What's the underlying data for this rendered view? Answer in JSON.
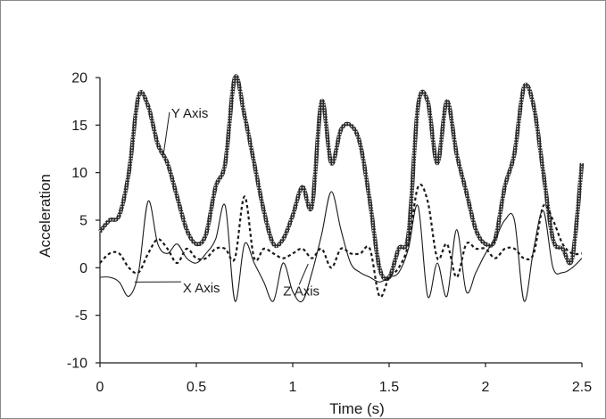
{
  "chart_data": {
    "type": "line",
    "xlabel": "Time (s)",
    "ylabel": "Acceleration",
    "xlim": [
      0,
      2.5
    ],
    "ylim": [
      -10,
      20
    ],
    "xticks": [
      0,
      0.5,
      1,
      1.5,
      2,
      2.5
    ],
    "xtick_labels": [
      "0",
      "0.5",
      "1",
      "1.5",
      "2",
      "2.5"
    ],
    "yticks": [
      -10,
      -5,
      0,
      5,
      10,
      15,
      20
    ],
    "ytick_labels": [
      "-10",
      "-5",
      "0",
      "5",
      "10",
      "15",
      "20"
    ],
    "grid": false,
    "legend": "none",
    "annotations": [
      {
        "text": "Y Axis",
        "series": "Y Axis",
        "x": 0.37,
        "y": 15.8,
        "arrow_to_x": 0.33,
        "arrow_to_y": 12.0
      },
      {
        "text": "X Axis",
        "series": "X Axis",
        "x": 0.43,
        "y": -2.6,
        "arrow_to_x": 0.18,
        "arrow_to_y": -1.5
      },
      {
        "text": "Z Axis",
        "series": "Z Axis",
        "x": 0.95,
        "y": -2.9,
        "arrow_to_x": 1.08,
        "arrow_to_y": 0.4
      }
    ],
    "series": [
      {
        "name": "Y Axis",
        "style": "thick-hatched",
        "x": [
          0,
          0.05,
          0.1,
          0.15,
          0.2,
          0.25,
          0.3,
          0.35,
          0.4,
          0.45,
          0.5,
          0.55,
          0.6,
          0.65,
          0.7,
          0.75,
          0.8,
          0.85,
          0.9,
          0.95,
          1.0,
          1.05,
          1.1,
          1.15,
          1.2,
          1.25,
          1.3,
          1.35,
          1.4,
          1.45,
          1.5,
          1.55,
          1.6,
          1.65,
          1.7,
          1.75,
          1.8,
          1.85,
          1.9,
          1.95,
          2.0,
          2.05,
          2.1,
          2.15,
          2.2,
          2.25,
          2.3,
          2.35,
          2.4,
          2.45,
          2.5
        ],
        "values": [
          3.8,
          5,
          5.5,
          10,
          18,
          17,
          13,
          11,
          7.5,
          4,
          2.5,
          3.5,
          8.5,
          11,
          20,
          16,
          11,
          6,
          2.5,
          3,
          5.5,
          8.5,
          6.5,
          17.5,
          11,
          14.5,
          15,
          13,
          7,
          0,
          -1,
          2,
          3.5,
          17,
          17.5,
          11,
          17.5,
          12,
          8,
          4,
          2.5,
          3,
          8.5,
          12,
          19,
          17,
          10,
          3,
          2,
          1,
          11
        ]
      },
      {
        "name": "X Axis",
        "style": "thin-solid",
        "x": [
          0,
          0.05,
          0.1,
          0.15,
          0.2,
          0.25,
          0.3,
          0.35,
          0.4,
          0.45,
          0.5,
          0.55,
          0.6,
          0.65,
          0.7,
          0.75,
          0.8,
          0.85,
          0.9,
          0.95,
          1.0,
          1.05,
          1.1,
          1.15,
          1.2,
          1.25,
          1.3,
          1.35,
          1.4,
          1.45,
          1.5,
          1.55,
          1.6,
          1.65,
          1.7,
          1.75,
          1.8,
          1.85,
          1.9,
          1.95,
          2.0,
          2.05,
          2.1,
          2.15,
          2.2,
          2.25,
          2.3,
          2.35,
          2.4,
          2.45,
          2.5
        ],
        "values": [
          -1,
          -1,
          -1.5,
          -3,
          -0.5,
          7,
          2.5,
          1.5,
          2.5,
          1,
          0.5,
          1.5,
          3,
          6.5,
          -3.5,
          2.5,
          0.5,
          -1.5,
          -3.5,
          0.5,
          -2.5,
          -3.5,
          -0.5,
          3.5,
          8,
          4,
          0.5,
          -0.5,
          -1,
          -1.5,
          -1,
          -0.5,
          2,
          6.5,
          -3,
          0.5,
          -3,
          4,
          -2.5,
          -0.5,
          1.5,
          3,
          5,
          5,
          -3.5,
          2,
          6,
          0,
          -0.5,
          0,
          1
        ]
      },
      {
        "name": "Z Axis",
        "style": "dashed",
        "x": [
          0,
          0.05,
          0.1,
          0.15,
          0.2,
          0.25,
          0.3,
          0.35,
          0.4,
          0.45,
          0.5,
          0.55,
          0.6,
          0.65,
          0.7,
          0.75,
          0.8,
          0.85,
          0.9,
          0.95,
          1.0,
          1.05,
          1.1,
          1.15,
          1.2,
          1.25,
          1.3,
          1.35,
          1.4,
          1.45,
          1.5,
          1.55,
          1.6,
          1.65,
          1.7,
          1.75,
          1.8,
          1.85,
          1.9,
          1.95,
          2.0,
          2.05,
          2.1,
          2.15,
          2.2,
          2.25,
          2.3,
          2.35,
          2.4,
          2.45,
          2.5
        ],
        "values": [
          0.5,
          1.5,
          1.5,
          0,
          -0.5,
          1.5,
          3,
          2,
          0.5,
          2,
          1,
          1,
          2,
          2,
          1,
          7.5,
          1,
          2,
          1.5,
          1,
          1.5,
          2,
          1,
          2,
          0,
          2,
          1.5,
          1.5,
          2,
          -3,
          -1,
          0,
          2.5,
          8.5,
          7,
          1,
          2.5,
          -1,
          2.5,
          2,
          2,
          1,
          2,
          2,
          1,
          1.5,
          6.5,
          5,
          2.5,
          1.5,
          1.5
        ]
      }
    ]
  }
}
